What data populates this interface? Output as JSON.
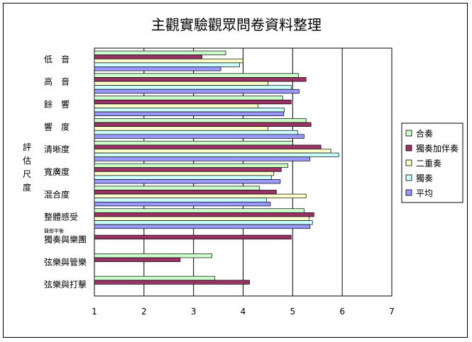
{
  "chart_data": {
    "type": "bar",
    "orientation": "horizontal",
    "title": "主觀實驗觀眾問卷資料整理",
    "ylabel": "評估尺度",
    "xlabel": "",
    "xlim": [
      1,
      7
    ],
    "x_ticks": [
      "1",
      "2",
      "3",
      "4",
      "5",
      "6",
      "7"
    ],
    "grid": "vertical",
    "legend_position": "right",
    "categories": [
      "低　音",
      "高　音",
      "餘　響",
      "響　度",
      "清晰度",
      "寬廣度",
      "混合度",
      "整體感受",
      "獨奏與樂團",
      "弦樂與管樂",
      "弦樂與打擊"
    ],
    "category_note": "聲部平衡",
    "series": [
      {
        "name": "合奏",
        "color": "#CCFFCC",
        "values": [
          3.65,
          5.12,
          4.8,
          5.27,
          5.0,
          4.9,
          4.33,
          5.23,
          null,
          3.37,
          3.43
        ]
      },
      {
        "name": "獨奏加伴奏",
        "color": "#993366",
        "values": [
          3.17,
          5.27,
          4.97,
          5.37,
          5.57,
          4.77,
          4.67,
          5.43,
          4.97,
          2.73,
          4.13
        ]
      },
      {
        "name": "二重奏",
        "color": "#FFFFCC",
        "values": [
          4.0,
          4.5,
          4.3,
          4.5,
          5.77,
          4.62,
          5.27,
          5.33,
          null,
          null,
          null
        ]
      },
      {
        "name": "獨奏",
        "color": "#CCFFFF",
        "values": [
          3.93,
          4.97,
          4.83,
          5.1,
          5.93,
          4.57,
          4.47,
          5.4,
          null,
          null,
          null
        ]
      },
      {
        "name": "平均",
        "color": "#9999FF",
        "values": [
          3.55,
          5.13,
          4.82,
          5.23,
          5.35,
          4.75,
          4.55,
          5.35,
          null,
          null,
          null
        ]
      }
    ]
  }
}
